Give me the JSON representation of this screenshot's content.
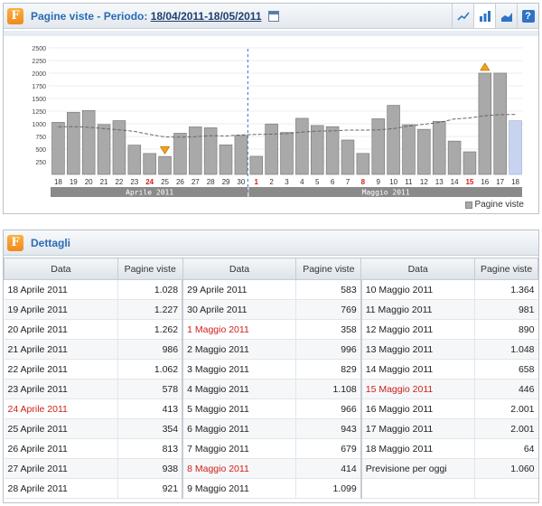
{
  "header": {
    "title_prefix": "Pagine viste - Periodo: ",
    "period": "18/04/2011-18/05/2011",
    "logo_letter": "F",
    "help_label": "?"
  },
  "chart_data": {
    "type": "bar",
    "yticks": [
      250,
      500,
      750,
      1000,
      1250,
      1500,
      1750,
      2000,
      2250,
      2500
    ],
    "ylim": [
      0,
      2500
    ],
    "categories": [
      "18",
      "19",
      "20",
      "21",
      "22",
      "23",
      "24",
      "25",
      "26",
      "27",
      "28",
      "29",
      "30",
      "1",
      "2",
      "3",
      "4",
      "5",
      "6",
      "7",
      "8",
      "9",
      "10",
      "11",
      "12",
      "13",
      "14",
      "15",
      "16",
      "17",
      "18"
    ],
    "red_categories": [
      "24",
      "1",
      "8",
      "15"
    ],
    "months": [
      {
        "label": "Aprile 2011",
        "from": 0,
        "to": 12
      },
      {
        "label": "Maggio 2011",
        "from": 13,
        "to": 30
      }
    ],
    "series": [
      {
        "name": "Pagine viste",
        "values": [
          1028,
          1227,
          1262,
          986,
          1062,
          578,
          413,
          354,
          813,
          938,
          921,
          583,
          769,
          358,
          996,
          829,
          1108,
          966,
          943,
          679,
          414,
          1099,
          1364,
          981,
          890,
          1048,
          658,
          446,
          2001,
          2001,
          1060
        ]
      }
    ],
    "trend": [
      940,
      945,
      930,
      905,
      880,
      850,
      790,
      740,
      735,
      745,
      765,
      760,
      780,
      790,
      795,
      805,
      835,
      855,
      860,
      875,
      875,
      880,
      905,
      955,
      990,
      1025,
      1095,
      1115,
      1160,
      1180,
      1185
    ],
    "forecast_index": 30,
    "max_marker_indices": [
      28
    ],
    "min_marker_indices": [
      7
    ],
    "legend": "Pagine viste"
  },
  "details": {
    "title": "Dettagli",
    "col_date": "Data",
    "col_views": "Pagine viste",
    "rows": [
      [
        {
          "d": "18 Aprile 2011",
          "v": "1.028"
        },
        {
          "d": "29 Aprile 2011",
          "v": "583"
        },
        {
          "d": "10 Maggio 2011",
          "v": "1.364"
        }
      ],
      [
        {
          "d": "19 Aprile 2011",
          "v": "1.227"
        },
        {
          "d": "30 Aprile 2011",
          "v": "769"
        },
        {
          "d": "11 Maggio 2011",
          "v": "981"
        }
      ],
      [
        {
          "d": "20 Aprile 2011",
          "v": "1.262"
        },
        {
          "d": "1 Maggio 2011",
          "v": "358",
          "red": true
        },
        {
          "d": "12 Maggio 2011",
          "v": "890"
        }
      ],
      [
        {
          "d": "21 Aprile 2011",
          "v": "986"
        },
        {
          "d": "2 Maggio 2011",
          "v": "996"
        },
        {
          "d": "13 Maggio 2011",
          "v": "1.048"
        }
      ],
      [
        {
          "d": "22 Aprile 2011",
          "v": "1.062"
        },
        {
          "d": "3 Maggio 2011",
          "v": "829"
        },
        {
          "d": "14 Maggio 2011",
          "v": "658"
        }
      ],
      [
        {
          "d": "23 Aprile 2011",
          "v": "578"
        },
        {
          "d": "4 Maggio 2011",
          "v": "1.108"
        },
        {
          "d": "15 Maggio 2011",
          "v": "446",
          "red": true
        }
      ],
      [
        {
          "d": "24 Aprile 2011",
          "v": "413",
          "red": true
        },
        {
          "d": "5 Maggio 2011",
          "v": "966"
        },
        {
          "d": "16 Maggio 2011",
          "v": "2.001"
        }
      ],
      [
        {
          "d": "25 Aprile 2011",
          "v": "354"
        },
        {
          "d": "6 Maggio 2011",
          "v": "943"
        },
        {
          "d": "17 Maggio 2011",
          "v": "2.001"
        }
      ],
      [
        {
          "d": "26 Aprile 2011",
          "v": "813"
        },
        {
          "d": "7 Maggio 2011",
          "v": "679"
        },
        {
          "d": "18 Maggio 2011",
          "v": "64"
        }
      ],
      [
        {
          "d": "27 Aprile 2011",
          "v": "938"
        },
        {
          "d": "8 Maggio 2011",
          "v": "414",
          "red": true
        },
        {
          "d": "Previsione per oggi",
          "v": "1.060"
        }
      ],
      [
        {
          "d": "28 Aprile 2011",
          "v": "921"
        },
        {
          "d": "9 Maggio 2011",
          "v": "1.099"
        },
        {
          "d": "",
          "v": ""
        }
      ]
    ]
  },
  "colors": {
    "bar": "#a9a9a9",
    "bar_forecast": "#c8d3ef",
    "axis_band": "#8a8a8a",
    "red": "#d0201b",
    "accent": "#2a6bb5"
  },
  "icons": [
    "line-chart-icon",
    "bar-chart-icon",
    "area-chart-icon",
    "help-icon",
    "calendar-icon"
  ]
}
